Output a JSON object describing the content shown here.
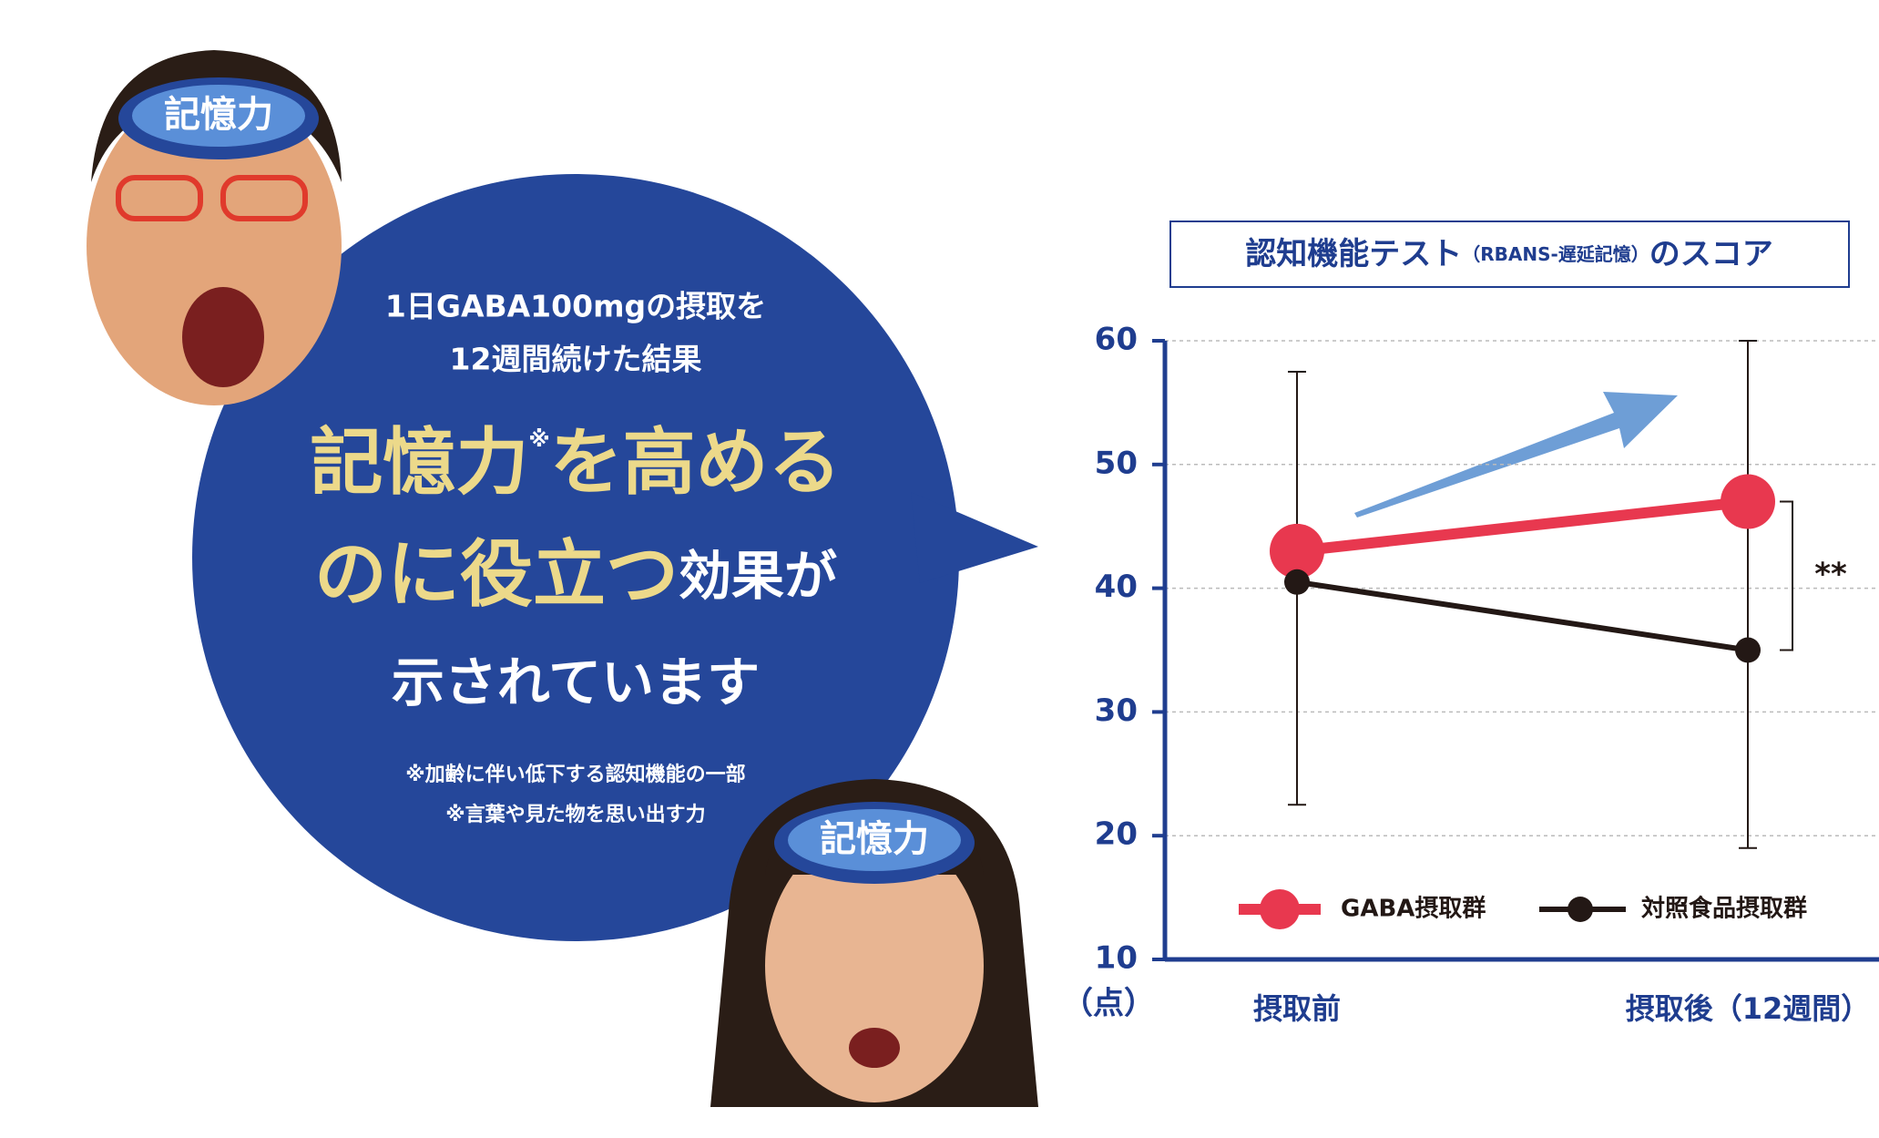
{
  "bubble": {
    "line1": "1日GABA100mgの摂取を",
    "line2": "12週間続けた結果",
    "headline1": "記憶力",
    "mark": "※",
    "headline1b": "を高める",
    "headline2": "のに役立つ",
    "headline2b": "効果が",
    "line3": "示されています",
    "notes": [
      "※加齢に伴い低下する認知機能の一部",
      "※言葉や見た物を思い出す力"
    ]
  },
  "badges": [
    "記憶力",
    "記憶力"
  ],
  "chart_data": {
    "type": "line",
    "title": [
      "認知機能テスト",
      "（RBANS-遅延記憶）",
      "のスコア"
    ],
    "y_unit": "（点）",
    "categories": [
      "摂取前",
      "摂取後（12週間）"
    ],
    "series": [
      {
        "name": "GABA摂取群",
        "color": "#e8384f",
        "values": [
          43,
          47
        ]
      },
      {
        "name": "対照食品摂取群",
        "color": "#231815",
        "values": [
          40.5,
          35
        ]
      }
    ],
    "error_bars": [
      {
        "low": 22.5,
        "high": 57.5
      },
      {
        "low": 19,
        "high": 60
      }
    ],
    "significance": "**",
    "ylim": [
      10,
      60
    ],
    "yticks": [
      10,
      20,
      30,
      40,
      50,
      60
    ],
    "grid": true
  }
}
